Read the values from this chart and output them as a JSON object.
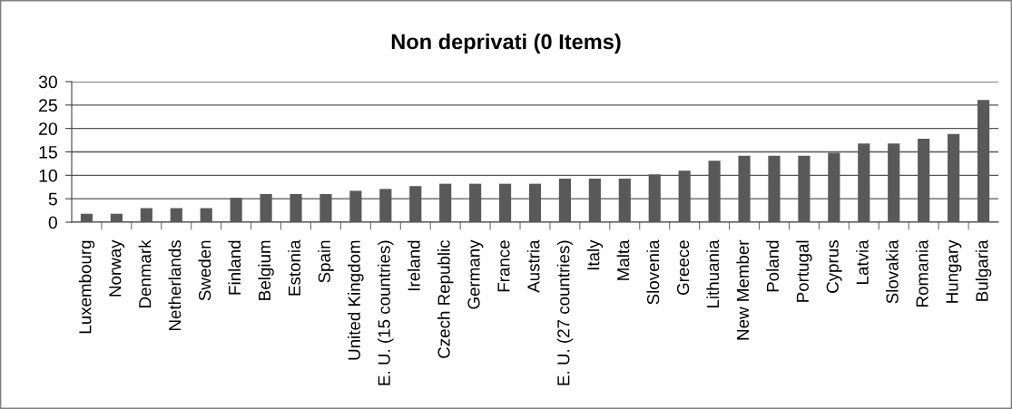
{
  "chart_data": {
    "type": "bar",
    "title": "Non deprivati (0 Items)",
    "categories": [
      "Luxembourg",
      "Norway",
      "Denmark",
      "Netherlands",
      "Sweden",
      "Finland",
      "Belgium",
      "Estonia",
      "Spain",
      "United Kingdom",
      "E. U. (15 countries)",
      "Ireland",
      "Czech Republic",
      "Germany",
      "France",
      "Austria",
      "E. U. (27 countries)",
      "Italy",
      "Malta",
      "Slovenia",
      "Greece",
      "Lithuania",
      "New Member",
      "Poland",
      "Portugal",
      "Cyprus",
      "Latvia",
      "Slovakia",
      "Romania",
      "Hungary",
      "Bulgaria"
    ],
    "values": [
      1.8,
      1.8,
      3.0,
      3.0,
      3.0,
      5.2,
      6.0,
      6.0,
      6.0,
      6.7,
      7.1,
      7.7,
      8.2,
      8.2,
      8.2,
      8.2,
      9.3,
      9.3,
      9.3,
      10.2,
      11.0,
      13.1,
      14.2,
      14.2,
      14.2,
      14.8,
      16.8,
      16.8,
      17.8,
      18.8,
      26.1
    ],
    "color": "#595959",
    "ylim": [
      0,
      30
    ],
    "yticks": [
      0,
      5,
      10,
      15,
      20,
      25,
      30
    ],
    "grid": "y"
  }
}
